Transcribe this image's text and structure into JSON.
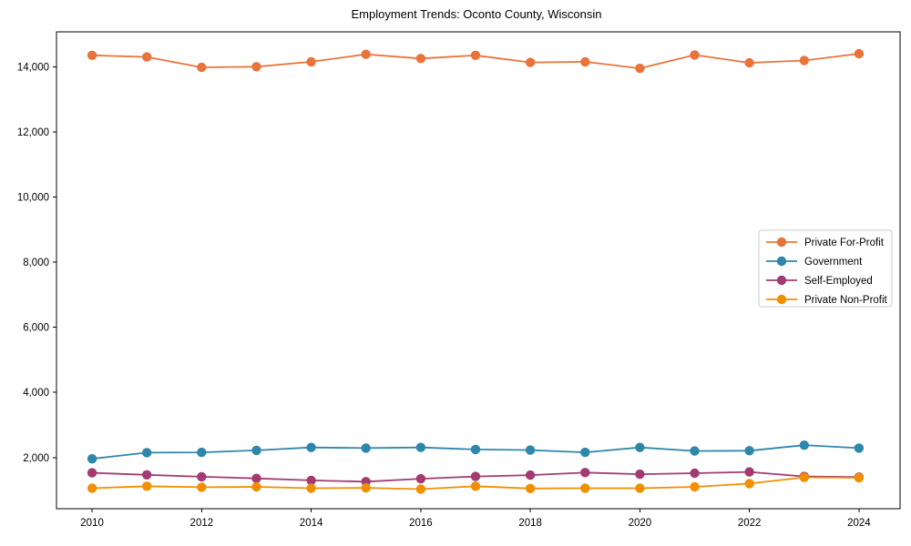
{
  "chart_data": {
    "type": "line",
    "title": "Employment Trends: Oconto County, Wisconsin",
    "xlabel": "",
    "ylabel": "",
    "x": [
      2010,
      2011,
      2012,
      2013,
      2014,
      2015,
      2016,
      2017,
      2018,
      2019,
      2020,
      2021,
      2022,
      2023,
      2024
    ],
    "series": [
      {
        "name": "Private For-Profit",
        "color": "#E8743B",
        "values": [
          14350,
          14300,
          13980,
          14000,
          14150,
          14380,
          14250,
          14350,
          14130,
          14150,
          13950,
          14360,
          14120,
          14190,
          14400
        ]
      },
      {
        "name": "Government",
        "color": "#2E86AB",
        "values": [
          1960,
          2150,
          2160,
          2220,
          2310,
          2290,
          2310,
          2250,
          2230,
          2160,
          2310,
          2200,
          2210,
          2380,
          2290
        ]
      },
      {
        "name": "Self-Employed",
        "color": "#A23B72",
        "values": [
          1530,
          1470,
          1410,
          1360,
          1300,
          1260,
          1350,
          1420,
          1460,
          1540,
          1490,
          1520,
          1560,
          1420,
          1400
        ]
      },
      {
        "name": "Private Non-Profit",
        "color": "#F18F01",
        "values": [
          1060,
          1120,
          1090,
          1100,
          1060,
          1070,
          1030,
          1120,
          1050,
          1060,
          1060,
          1100,
          1200,
          1390,
          1380
        ]
      }
    ],
    "xticks": {
      "values": [
        2010,
        2012,
        2014,
        2016,
        2018,
        2020,
        2022,
        2024
      ],
      "labels": [
        "2010",
        "2012",
        "2014",
        "2016",
        "2018",
        "2020",
        "2022",
        "2024"
      ]
    },
    "yticks": {
      "values": [
        2000,
        4000,
        6000,
        8000,
        10000,
        12000,
        14000
      ],
      "labels": [
        "2,000",
        "4,000",
        "6,000",
        "8,000",
        "10,000",
        "12,000",
        "14,000"
      ]
    },
    "xlim": [
      2009.35,
      2024.75
    ],
    "ylim": [
      430,
      15070
    ],
    "grid": false,
    "marker": "circle",
    "legend": {
      "position": "center-right",
      "entries": [
        "Private For-Profit",
        "Government",
        "Self-Employed",
        "Private Non-Profit"
      ]
    }
  }
}
